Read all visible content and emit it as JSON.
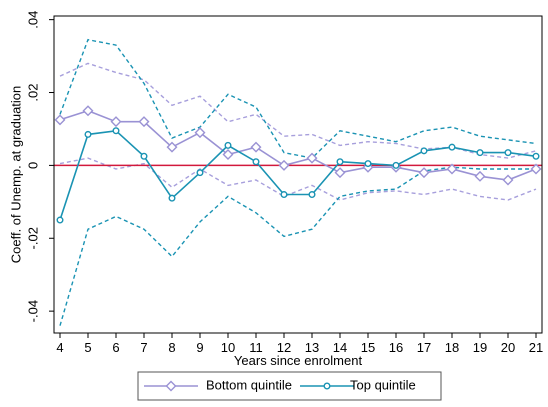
{
  "colors": {
    "bottom": "#9a92d4",
    "bottom_ci": "#a79fdc",
    "top": "#1a93b3",
    "top_ci": "#1a93b3",
    "zero_line": "#d2193c",
    "frame": "#000000",
    "legend_border": "#555555"
  },
  "chart_data": {
    "type": "line",
    "xlabel": "Years since enrolment",
    "ylabel": "Coeff. of Unemp. at graduation",
    "xlim": [
      4,
      21
    ],
    "ylim": [
      -0.046,
      0.041
    ],
    "x": [
      4,
      5,
      6,
      7,
      8,
      9,
      10,
      11,
      12,
      13,
      14,
      15,
      16,
      17,
      18,
      19,
      20,
      21
    ],
    "xticks": [
      4,
      5,
      6,
      7,
      8,
      9,
      10,
      11,
      12,
      13,
      14,
      15,
      16,
      17,
      18,
      19,
      20,
      21
    ],
    "yticks": [
      {
        "value": -0.04,
        "label": "-.04"
      },
      {
        "value": -0.02,
        "label": "-.02"
      },
      {
        "value": 0,
        "label": "0"
      },
      {
        "value": 0.02,
        "label": ".02"
      },
      {
        "value": 0.04,
        "label": ".04"
      }
    ],
    "reference_line": 0,
    "grid": false,
    "legend_position": "bottom",
    "series": [
      {
        "name": "Bottom quintile",
        "key": "bottom",
        "marker": "diamond",
        "values": [
          0.0125,
          0.015,
          0.012,
          0.012,
          0.005,
          0.009,
          0.003,
          0.005,
          0.0,
          0.002,
          -0.002,
          -0.0005,
          -0.0005,
          -0.002,
          -0.001,
          -0.003,
          -0.004,
          -0.001
        ],
        "ci_upper": [
          0.0245,
          0.028,
          0.0255,
          0.0235,
          0.0165,
          0.019,
          0.012,
          0.014,
          0.008,
          0.0085,
          0.0055,
          0.0065,
          0.006,
          0.0045,
          0.005,
          0.003,
          0.002,
          0.004
        ],
        "ci_lower": [
          0.0005,
          0.002,
          -0.001,
          0.0005,
          -0.006,
          -0.001,
          -0.0055,
          -0.004,
          -0.0085,
          -0.0055,
          -0.0095,
          -0.0075,
          -0.007,
          -0.008,
          -0.0065,
          -0.0085,
          -0.0095,
          -0.0065
        ]
      },
      {
        "name": "Top quintile",
        "key": "top",
        "marker": "circle",
        "values": [
          -0.015,
          0.0085,
          0.0095,
          0.0025,
          -0.009,
          -0.002,
          0.0055,
          0.001,
          -0.008,
          -0.008,
          0.001,
          0.0005,
          0.0,
          0.004,
          0.005,
          0.0035,
          0.0035,
          0.0025
        ],
        "ci_upper": [
          0.014,
          0.0345,
          0.033,
          0.0225,
          0.0075,
          0.0105,
          0.0195,
          0.016,
          0.0035,
          0.002,
          0.0095,
          0.008,
          0.0065,
          0.0095,
          0.0105,
          0.008,
          0.007,
          0.006
        ],
        "ci_lower": [
          -0.044,
          -0.0175,
          -0.014,
          -0.0175,
          -0.025,
          -0.0155,
          -0.0085,
          -0.013,
          -0.0195,
          -0.0175,
          -0.0085,
          -0.007,
          -0.0065,
          -0.0015,
          -0.0005,
          -0.001,
          -0.001,
          -0.001
        ]
      }
    ]
  }
}
